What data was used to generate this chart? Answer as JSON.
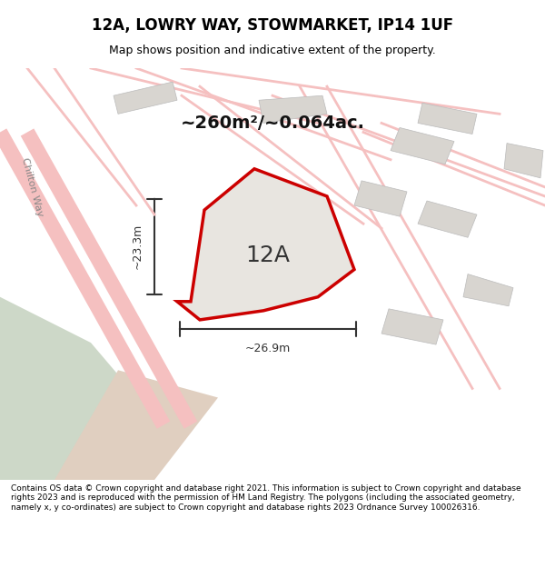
{
  "title": "12A, LOWRY WAY, STOWMARKET, IP14 1UF",
  "subtitle": "Map shows position and indicative extent of the property.",
  "area_label": "~260m²/~0.064ac.",
  "plot_label": "12A",
  "dim_width_label": "~26.9m",
  "dim_height_label": "~23.3m",
  "footer": "Contains OS data © Crown copyright and database right 2021. This information is subject to Crown copyright and database rights 2023 and is reproduced with the permission of HM Land Registry. The polygons (including the associated geometry, namely x, y co-ordinates) are subject to Crown copyright and database rights 2023 Ordnance Survey 100026316.",
  "bg_color": "#f5f5f0",
  "map_bg": "#f0eeea",
  "footer_bg": "#ffffff",
  "plot_fill": "#e8e8e8",
  "plot_edge": "#cc0000",
  "road_color": "#f5c0c0",
  "building_color": "#d8d5d0",
  "green_color": "#d8e8d8",
  "tan_color": "#e8d8c8"
}
